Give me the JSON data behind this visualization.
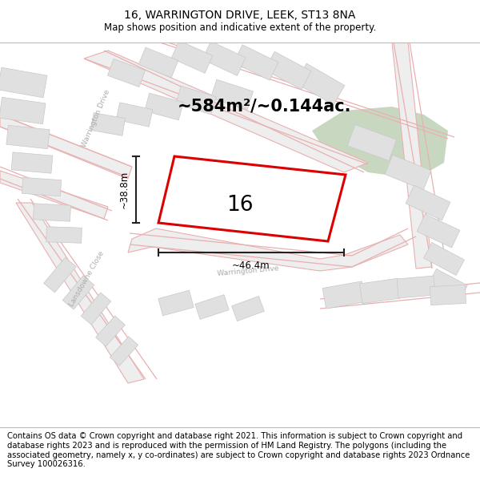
{
  "title": "16, WARRINGTON DRIVE, LEEK, ST13 8NA",
  "subtitle": "Map shows position and indicative extent of the property.",
  "title_fontsize": 10,
  "subtitle_fontsize": 8.5,
  "footer_text": "Contains OS data © Crown copyright and database right 2021. This information is subject to Crown copyright and database rights 2023 and is reproduced with the permission of HM Land Registry. The polygons (including the associated geometry, namely x, y co-ordinates) are subject to Crown copyright and database rights 2023 Ordnance Survey 100026316.",
  "footer_fontsize": 7.2,
  "area_label": "~584m²/~0.144ac.",
  "plot_number": "16",
  "dim_horizontal": "~46.4m",
  "dim_vertical": "~38.8m",
  "road_label_warrington_upper": "Warrington Drive",
  "road_label_warrington_lower": "Warrington Drive",
  "road_label_lansdowne": "Lansdowne Close",
  "map_bg": "#f0f0f0",
  "building_fill": "#e0e0e0",
  "building_edge": "#c8c8c8",
  "road_line_color": "#e8b0b0",
  "green_fill": "#c8d8c0",
  "plot_edge_color": "#dd0000",
  "plot_fill_color": "#ffffff",
  "plot_linewidth": 2.2,
  "dim_line_color": "#222222",
  "road_label_color": "#aaaaaa",
  "white_road_fill": "#f8f8f8"
}
